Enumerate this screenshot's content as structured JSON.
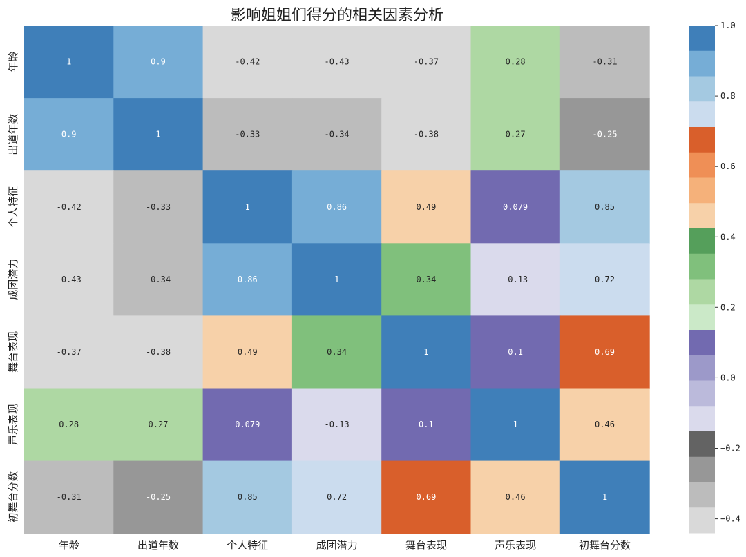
{
  "chart_data": {
    "type": "heatmap",
    "title": "影响姐姐们得分的相关因素分析",
    "xlabels": [
      "年龄",
      "出道年数",
      "个人特征",
      "成团潜力",
      "舞台表现",
      "声乐表现",
      "初舞台分数"
    ],
    "ylabels": [
      "年龄",
      "出道年数",
      "个人特征",
      "成团潜力",
      "舞台表现",
      "声乐表现",
      "初舞台分数"
    ],
    "values": [
      [
        1,
        0.9,
        -0.42,
        -0.43,
        -0.37,
        0.28,
        -0.31
      ],
      [
        0.9,
        1,
        -0.33,
        -0.34,
        -0.38,
        0.27,
        -0.25
      ],
      [
        -0.42,
        -0.33,
        1,
        0.86,
        0.49,
        0.079,
        0.85
      ],
      [
        -0.43,
        -0.34,
        0.86,
        1,
        0.34,
        -0.13,
        0.72
      ],
      [
        -0.37,
        -0.38,
        0.49,
        0.34,
        1,
        0.1,
        0.69
      ],
      [
        0.28,
        0.27,
        0.079,
        -0.13,
        0.1,
        1,
        0.46
      ],
      [
        -0.31,
        -0.25,
        0.85,
        0.72,
        0.69,
        0.46,
        1
      ]
    ],
    "value_labels": [
      [
        "1",
        "0.9",
        "-0.42",
        "-0.43",
        "-0.37",
        "0.28",
        "-0.31"
      ],
      [
        "0.9",
        "1",
        "-0.33",
        "-0.34",
        "-0.38",
        "0.27",
        "-0.25"
      ],
      [
        "-0.42",
        "-0.33",
        "1",
        "0.86",
        "0.49",
        "0.079",
        "0.85"
      ],
      [
        "-0.43",
        "-0.34",
        "0.86",
        "1",
        "0.34",
        "-0.13",
        "0.72"
      ],
      [
        "-0.37",
        "-0.38",
        "0.49",
        "0.34",
        "1",
        "0.1",
        "0.69"
      ],
      [
        "0.28",
        "0.27",
        "0.079",
        "-0.13",
        "0.1",
        "1",
        "0.46"
      ],
      [
        "-0.31",
        "-0.25",
        "0.85",
        "0.72",
        "0.69",
        "0.46",
        "1"
      ]
    ],
    "colorbar": {
      "vmin": -0.44,
      "vmax": 1.0,
      "ticks": [
        1.0,
        0.8,
        0.6,
        0.4,
        0.2,
        0.0,
        -0.2,
        -0.4
      ],
      "tick_labels": [
        "1.0",
        "0.8",
        "0.6",
        "0.4",
        "0.2",
        "0.0",
        "−0.2",
        "−0.4"
      ],
      "colormap": "tab20c",
      "colors_top_to_bottom": [
        "#3f7fb9",
        "#76add6",
        "#a4c9e1",
        "#cbdcee",
        "#d95f2b",
        "#ef8f56",
        "#f5b17a",
        "#f7d1a9",
        "#559f5b",
        "#80c07c",
        "#aed8a3",
        "#cbe9c8",
        "#726ab0",
        "#9c99c9",
        "#bbbadb",
        "#dadaec",
        "#636363",
        "#979797",
        "#bcbcbc",
        "#d9d9d9"
      ]
    },
    "grid": false,
    "legend": "colorbar-right"
  }
}
